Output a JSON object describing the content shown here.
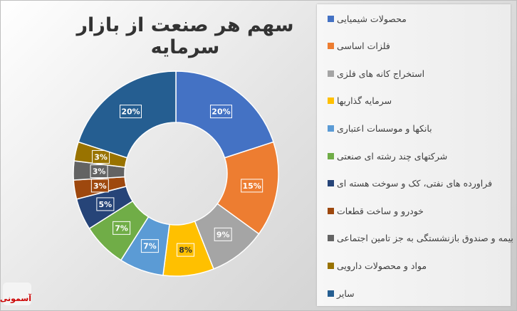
{
  "chart_data": {
    "type": "donut",
    "title": "سهم هر صنعت از بازار سرمایه",
    "categories": [
      "محصولات شیمیایی",
      "فلزات اساسی",
      "استخراج کانه های فلزی",
      "سرمایه گذاریها",
      "بانکها و موسسات اعتباری",
      "شرکتهای چند رشته ای صنعتی",
      "فراورده های نفتی، کک و سوخت هسته ای",
      "خودرو و ساخت قطعات",
      "بیمه و صندوق بازنشستگی به جز تامین اجتماعی",
      "مواد و محصولات دارویی",
      "سایر"
    ],
    "values": [
      20,
      15,
      9,
      8,
      7,
      7,
      5,
      3,
      3,
      3,
      20
    ],
    "labels": [
      "20%",
      "15%",
      "9%",
      "8%",
      "7%",
      "7%",
      "5%",
      "3%",
      "3%",
      "3%",
      "20%"
    ],
    "colors": [
      "#4472C4",
      "#ED7D31",
      "#A5A5A5",
      "#FFC000",
      "#5B9BD5",
      "#70AD47",
      "#264478",
      "#9E480E",
      "#636363",
      "#997300",
      "#255E91"
    ],
    "legend_position": "right"
  },
  "logo_text": "آسمونی"
}
